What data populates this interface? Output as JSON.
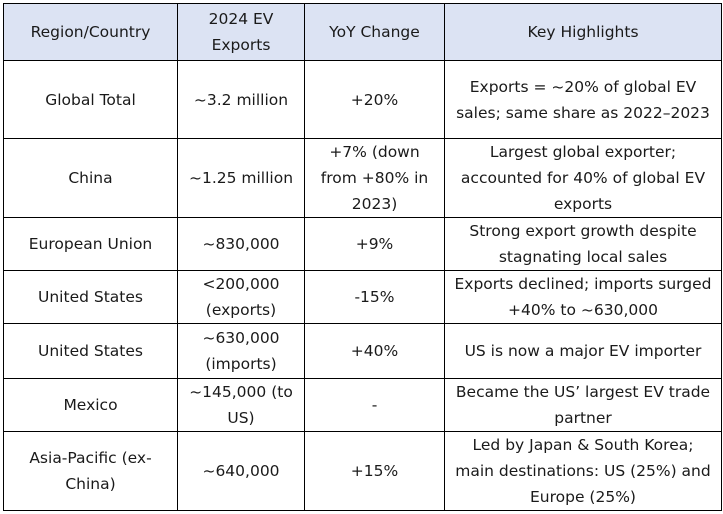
{
  "table": {
    "headers": [
      "Region/Country",
      "2024 EV Exports",
      "YoY Change",
      "Key Highlights"
    ],
    "rows": [
      {
        "region": "Global Total",
        "exports": "~3.2 million",
        "yoy": "+20%",
        "highlights": "Exports = ~20% of global EV sales; same share as 2022–2023"
      },
      {
        "region": "China",
        "exports": "~1.25 million",
        "yoy": "+7% (down from +80% in 2023)",
        "highlights": "Largest global exporter; accounted for 40% of global EV exports"
      },
      {
        "region": "European Union",
        "exports": "~830,000",
        "yoy": "+9%",
        "highlights": "Strong export growth despite stagnating local sales"
      },
      {
        "region": "United States",
        "exports": "<200,000 (exports)",
        "yoy": "-15%",
        "highlights": "Exports declined; imports surged +40% to ~630,000"
      },
      {
        "region": "United States",
        "exports": "~630,000 (imports)",
        "yoy": "+40%",
        "highlights": "US is now a major EV importer"
      },
      {
        "region": "Mexico",
        "exports": "~145,000 (to US)",
        "yoy": "-",
        "highlights": "Became the US’ largest EV trade partner"
      },
      {
        "region": "Asia-Pacific (ex-China)",
        "exports": "~640,000",
        "yoy": "+15%",
        "highlights": "Led by Japan & South Korea; main destinations: US (25%) and Europe (25%)"
      }
    ]
  }
}
